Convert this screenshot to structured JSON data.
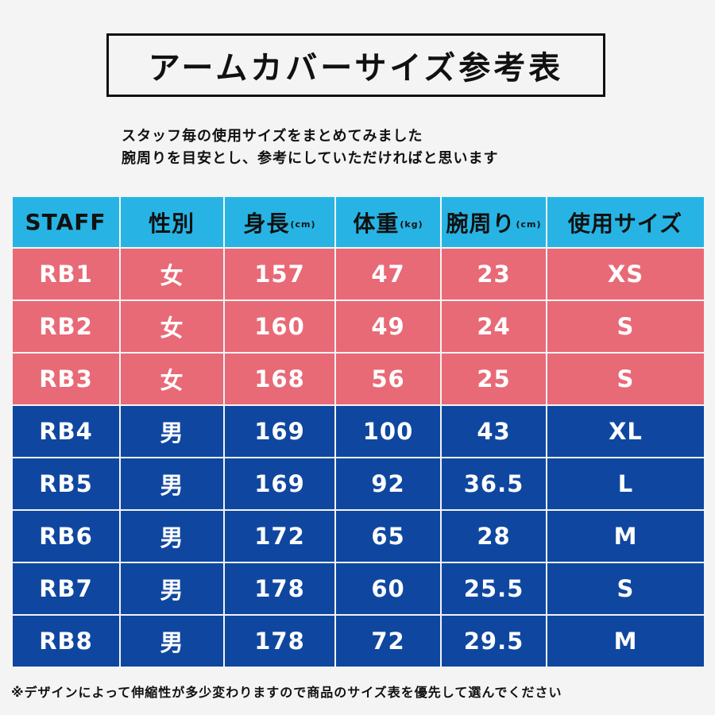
{
  "title": "アームカバーサイズ参考表",
  "intro": {
    "line1": "スタッフ毎の使用サイズをまとめてみました",
    "line2": "腕周りを目安とし、参考にしていただければと思います"
  },
  "table": {
    "headers": [
      {
        "label": "STAFF",
        "unit": ""
      },
      {
        "label": "性別",
        "unit": ""
      },
      {
        "label": "身長",
        "unit": "(cm)"
      },
      {
        "label": "体重",
        "unit": "(kg)"
      },
      {
        "label": "腕周り",
        "unit": "(cm)"
      },
      {
        "label": "使用サイズ",
        "unit": ""
      }
    ],
    "rows": [
      {
        "staff": "RB1",
        "gender": "女",
        "height": "157",
        "weight": "47",
        "arm": "23",
        "size": "XS"
      },
      {
        "staff": "RB2",
        "gender": "女",
        "height": "160",
        "weight": "49",
        "arm": "24",
        "size": "S"
      },
      {
        "staff": "RB3",
        "gender": "女",
        "height": "168",
        "weight": "56",
        "arm": "25",
        "size": "S"
      },
      {
        "staff": "RB4",
        "gender": "男",
        "height": "169",
        "weight": "100",
        "arm": "43",
        "size": "XL"
      },
      {
        "staff": "RB5",
        "gender": "男",
        "height": "169",
        "weight": "92",
        "arm": "36.5",
        "size": "L"
      },
      {
        "staff": "RB6",
        "gender": "男",
        "height": "172",
        "weight": "65",
        "arm": "28",
        "size": "M"
      },
      {
        "staff": "RB7",
        "gender": "男",
        "height": "178",
        "weight": "60",
        "arm": "25.5",
        "size": "S"
      },
      {
        "staff": "RB8",
        "gender": "男",
        "height": "178",
        "weight": "72",
        "arm": "29.5",
        "size": "M"
      }
    ]
  },
  "colors": {
    "header": "#27b4e4",
    "female_row": "#e86a77",
    "male_row": "#0f47a0"
  },
  "footnote": "※デザインによって伸縮性が多少変わりますので商品のサイズ表を優先して選んでください"
}
